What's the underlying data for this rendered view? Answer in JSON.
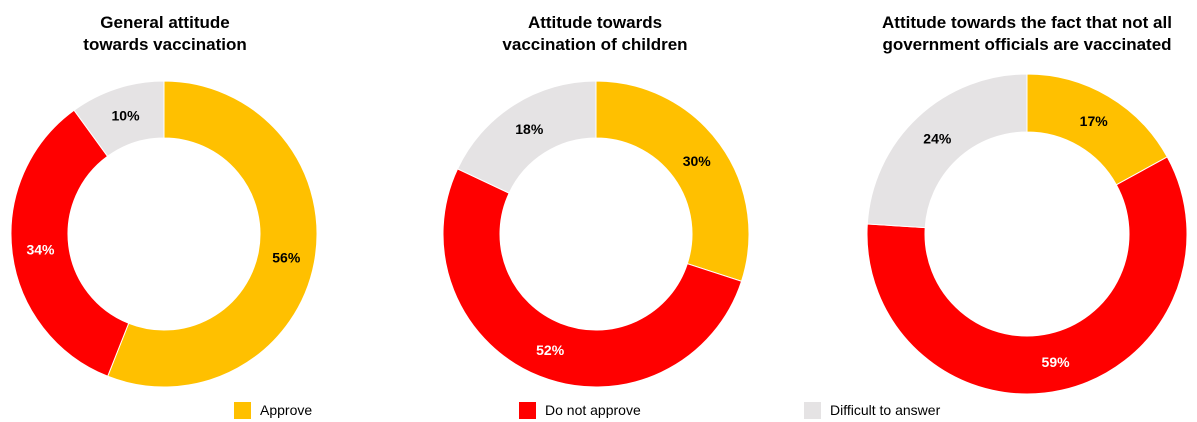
{
  "colors": {
    "approve": "#FFC000",
    "do_not_approve": "#FF0000",
    "difficult": "#E5E3E4"
  },
  "legend": [
    {
      "label": "Approve",
      "color_key": "approve"
    },
    {
      "label": "Do not approve",
      "color_key": "do_not_approve"
    },
    {
      "label": "Difficult to answer",
      "color_key": "difficult"
    }
  ],
  "chart_data": [
    {
      "type": "pie",
      "title_lines": [
        "General attitude",
        "towards vaccination"
      ],
      "categories": [
        "Approve",
        "Do not approve",
        "Difficult to answer"
      ],
      "values": [
        56,
        34,
        10
      ],
      "labels": [
        "56%",
        "34%",
        "10%"
      ],
      "label_colors": [
        "#000000",
        "#FFFFFF",
        "#000000"
      ],
      "legend": "bottom"
    },
    {
      "type": "pie",
      "title_lines": [
        "Attitude towards",
        "vaccination of children"
      ],
      "categories": [
        "Approve",
        "Do not approve",
        "Difficult to answer"
      ],
      "values": [
        30,
        52,
        18
      ],
      "labels": [
        "30%",
        "52%",
        "18%"
      ],
      "label_colors": [
        "#000000",
        "#FFFFFF",
        "#000000"
      ],
      "legend": "bottom"
    },
    {
      "type": "pie",
      "title_lines": [
        "Attitude towards the fact that not all",
        "government officials are vaccinated"
      ],
      "categories": [
        "Approve",
        "Do not approve",
        "Difficult to answer"
      ],
      "values": [
        17,
        59,
        24
      ],
      "labels": [
        "17%",
        "59%",
        "24%"
      ],
      "label_colors": [
        "#000000",
        "#FFFFFF",
        "#000000"
      ],
      "legend": "bottom"
    }
  ]
}
